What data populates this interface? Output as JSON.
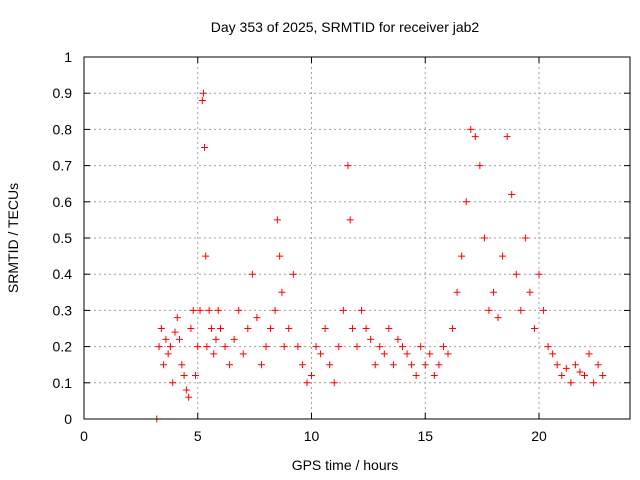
{
  "chart_data": {
    "type": "scatter",
    "title": "Day 353 of 2025, SRMTID for receiver jab2",
    "xlabel": "GPS time / hours",
    "ylabel": "SRMTID / TECUs",
    "xlim": [
      0,
      24
    ],
    "ylim": [
      0,
      1
    ],
    "xticks": [
      0,
      5,
      10,
      15,
      20
    ],
    "xtick_labels": [
      "0",
      "5",
      "10",
      "15",
      "20"
    ],
    "yticks": [
      0,
      0.1,
      0.2,
      0.3,
      0.4,
      0.5,
      0.6,
      0.7,
      0.8,
      0.9,
      1
    ],
    "ytick_labels": [
      "0",
      "0.1",
      "0.2",
      "0.3",
      "0.4",
      "0.5",
      "0.6",
      "0.7",
      "0.8",
      "0.9",
      "1"
    ],
    "grid": true,
    "marker": "+",
    "marker_color": "#ff0000",
    "series": [
      {
        "name": "SRMTID",
        "color": "#ff0000",
        "x": [
          3.2,
          3.3,
          3.4,
          3.5,
          3.6,
          3.7,
          3.8,
          3.9,
          4.0,
          4.1,
          4.2,
          4.3,
          4.4,
          4.5,
          4.6,
          4.7,
          4.8,
          4.9,
          5.0,
          5.1,
          5.2,
          5.25,
          5.3,
          5.35,
          5.4,
          5.5,
          5.6,
          5.7,
          5.8,
          5.9,
          6.0,
          6.2,
          6.4,
          6.6,
          6.8,
          7.0,
          7.2,
          7.4,
          7.6,
          7.8,
          8.0,
          8.2,
          8.4,
          8.5,
          8.6,
          8.7,
          8.8,
          9.0,
          9.2,
          9.4,
          9.6,
          9.8,
          10.0,
          10.2,
          10.4,
          10.6,
          10.8,
          11.0,
          11.2,
          11.4,
          11.6,
          11.7,
          11.8,
          12.0,
          12.2,
          12.4,
          12.6,
          12.8,
          13.0,
          13.2,
          13.4,
          13.6,
          13.8,
          14.0,
          14.2,
          14.4,
          14.6,
          14.8,
          15.0,
          15.2,
          15.4,
          15.6,
          15.8,
          16.0,
          16.2,
          16.4,
          16.6,
          16.8,
          17.0,
          17.2,
          17.4,
          17.6,
          17.8,
          18.0,
          18.2,
          18.4,
          18.6,
          18.8,
          19.0,
          19.2,
          19.4,
          19.6,
          19.8,
          20.0,
          20.2,
          20.4,
          20.6,
          20.8,
          21.0,
          21.2,
          21.4,
          21.6,
          21.8,
          22.0,
          22.2,
          22.4,
          22.6,
          22.8
        ],
        "y": [
          0.0,
          0.2,
          0.25,
          0.15,
          0.22,
          0.18,
          0.2,
          0.1,
          0.24,
          0.28,
          0.22,
          0.15,
          0.12,
          0.08,
          0.06,
          0.25,
          0.3,
          0.12,
          0.2,
          0.3,
          0.88,
          0.9,
          0.75,
          0.45,
          0.2,
          0.3,
          0.25,
          0.18,
          0.22,
          0.3,
          0.25,
          0.2,
          0.15,
          0.22,
          0.3,
          0.18,
          0.25,
          0.4,
          0.28,
          0.15,
          0.2,
          0.25,
          0.3,
          0.55,
          0.45,
          0.35,
          0.2,
          0.25,
          0.4,
          0.2,
          0.15,
          0.1,
          0.12,
          0.2,
          0.18,
          0.25,
          0.15,
          0.1,
          0.2,
          0.3,
          0.7,
          0.55,
          0.25,
          0.2,
          0.3,
          0.25,
          0.22,
          0.15,
          0.2,
          0.18,
          0.25,
          0.15,
          0.22,
          0.2,
          0.18,
          0.15,
          0.12,
          0.2,
          0.15,
          0.18,
          0.12,
          0.15,
          0.2,
          0.18,
          0.25,
          0.35,
          0.45,
          0.6,
          0.8,
          0.78,
          0.7,
          0.5,
          0.3,
          0.35,
          0.28,
          0.45,
          0.78,
          0.62,
          0.4,
          0.3,
          0.5,
          0.35,
          0.25,
          0.4,
          0.3,
          0.2,
          0.18,
          0.15,
          0.12,
          0.14,
          0.1,
          0.15,
          0.13,
          0.12,
          0.18,
          0.1,
          0.15,
          0.12
        ]
      }
    ]
  }
}
